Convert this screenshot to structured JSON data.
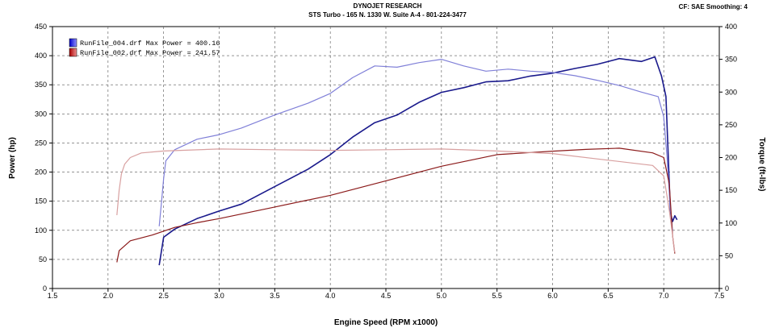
{
  "header": {
    "title": "DYNOJET RESEARCH",
    "subtitle": "STS Turbo - 165 N. 1330 W. Suite A-4 - 801-224-3477",
    "cf": "CF: SAE  Smoothing: 4"
  },
  "chart_data": {
    "type": "line",
    "title": "DYNOJET RESEARCH",
    "subtitle": "STS Turbo - 165 N. 1330 W. Suite A-4 - 801-224-3477",
    "xlabel": "Engine Speed (RPM x1000)",
    "ylabel": "Power (hp)",
    "y2label": "Torque (ft-lbs)",
    "xlim": [
      1.5,
      7.5
    ],
    "ylim": [
      0,
      450
    ],
    "y2lim": [
      0,
      400
    ],
    "xticks": [
      "1.5",
      "2.0",
      "2.5",
      "3.0",
      "3.5",
      "4.0",
      "4.5",
      "5.0",
      "5.5",
      "6.0",
      "6.5",
      "7.0",
      "7.5"
    ],
    "yticks": [
      "0",
      "50",
      "100",
      "150",
      "200",
      "250",
      "300",
      "350",
      "400",
      "450"
    ],
    "y2ticks": [
      "0",
      "50",
      "100",
      "150",
      "200",
      "250",
      "300",
      "350",
      "400"
    ],
    "grid": true,
    "legend_position": "top-left",
    "legend": [
      "RunFile_004.drf Max Power = 400.16",
      "RunFile_002.drf Max Power = 241.57"
    ],
    "series": [
      {
        "name": "RunFile_004.drf Max Power = 400.16",
        "quantity": "power",
        "axis": "left",
        "color": "#1a1a8c",
        "x": [
          2.46,
          2.5,
          2.6,
          2.8,
          3.0,
          3.2,
          3.5,
          3.8,
          4.0,
          4.2,
          4.4,
          4.6,
          4.8,
          5.0,
          5.2,
          5.4,
          5.6,
          5.8,
          6.0,
          6.2,
          6.4,
          6.6,
          6.8,
          6.92,
          6.98,
          7.02,
          7.04,
          7.06,
          7.08,
          7.1,
          7.12
        ],
        "values": [
          40,
          88,
          102,
          120,
          133,
          145,
          175,
          205,
          230,
          260,
          285,
          298,
          320,
          337,
          345,
          355,
          357,
          365,
          370,
          378,
          385,
          395,
          390,
          398,
          365,
          330,
          230,
          130,
          115,
          125,
          118
        ]
      },
      {
        "name": "RunFile_004.drf torque",
        "quantity": "torque",
        "axis": "right",
        "color": "#8080d8",
        "x": [
          2.46,
          2.48,
          2.5,
          2.52,
          2.6,
          2.8,
          3.0,
          3.2,
          3.5,
          3.8,
          4.0,
          4.2,
          4.4,
          4.6,
          4.8,
          5.0,
          5.2,
          5.4,
          5.6,
          5.8,
          6.0,
          6.2,
          6.4,
          6.6,
          6.8,
          6.95,
          7.0,
          7.03,
          7.06,
          7.08
        ],
        "values": [
          95,
          130,
          168,
          195,
          212,
          228,
          235,
          245,
          265,
          283,
          298,
          322,
          340,
          338,
          345,
          350,
          340,
          332,
          335,
          332,
          330,
          325,
          318,
          310,
          300,
          293,
          262,
          200,
          120,
          88
        ]
      },
      {
        "name": "RunFile_002.drf Max Power = 241.57",
        "quantity": "power",
        "axis": "left",
        "color": "#8b1a1a",
        "x": [
          2.08,
          2.1,
          2.2,
          2.4,
          2.6,
          2.8,
          3.0,
          3.5,
          4.0,
          4.5,
          5.0,
          5.5,
          6.0,
          6.3,
          6.6,
          6.9,
          7.0,
          7.05,
          7.08,
          7.1
        ],
        "values": [
          45,
          65,
          82,
          92,
          105,
          113,
          120,
          140,
          160,
          185,
          210,
          230,
          236,
          239,
          241,
          233,
          225,
          180,
          90,
          60
        ]
      },
      {
        "name": "RunFile_002.drf torque",
        "quantity": "torque",
        "axis": "right",
        "color": "#d8a0a0",
        "x": [
          2.08,
          2.1,
          2.12,
          2.15,
          2.2,
          2.3,
          2.5,
          3.0,
          3.5,
          4.0,
          4.5,
          5.0,
          5.5,
          6.0,
          6.5,
          6.9,
          7.0,
          7.05,
          7.08,
          7.1
        ],
        "values": [
          112,
          150,
          175,
          190,
          200,
          207,
          210,
          213,
          212,
          211,
          212,
          213,
          210,
          206,
          196,
          188,
          172,
          120,
          80,
          55
        ]
      }
    ]
  }
}
